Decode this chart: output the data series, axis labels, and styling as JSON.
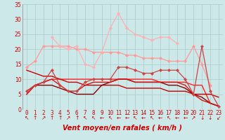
{
  "background_color": "#cce8e8",
  "grid_color": "#aacccc",
  "xlabel": "Vent moyen/en rafales ( km/h )",
  "xlabel_color": "#cc0000",
  "tick_color": "#cc0000",
  "series": [
    {
      "data": [
        14,
        16,
        21,
        21,
        21,
        21,
        20,
        20,
        19,
        19,
        19,
        19,
        18,
        18,
        17,
        17,
        17,
        16,
        16,
        16,
        21,
        15,
        8,
        null
      ],
      "color": "#ff9999",
      "lw": 0.9,
      "marker": "D",
      "ms": 2.2
    },
    {
      "data": [
        null,
        null,
        null,
        24,
        21,
        20,
        21,
        15,
        14,
        19,
        27,
        32,
        27,
        25,
        24,
        23,
        24,
        24,
        22,
        null,
        null,
        null,
        null,
        null
      ],
      "color": "#ffb0b0",
      "lw": 0.9,
      "marker": "D",
      "ms": 2.2
    },
    {
      "data": [
        6,
        8,
        9,
        13,
        8,
        6,
        6,
        9,
        10,
        10,
        10,
        14,
        14,
        13,
        12,
        12,
        13,
        13,
        13,
        10,
        5,
        21,
        6,
        1
      ],
      "color": "#cc4444",
      "lw": 0.9,
      "marker": "D",
      "ms": 2.2
    },
    {
      "data": [
        5,
        8,
        9,
        10,
        10,
        10,
        10,
        10,
        10,
        10,
        10,
        10,
        10,
        10,
        10,
        10,
        9,
        9,
        9,
        9,
        8,
        8,
        2,
        1
      ],
      "color": "#ff2222",
      "lw": 1.0,
      "marker": null,
      "ms": 0
    },
    {
      "data": [
        13,
        12,
        11,
        11,
        10,
        9,
        9,
        8,
        8,
        8,
        8,
        8,
        7,
        7,
        7,
        7,
        7,
        6,
        6,
        6,
        5,
        5,
        5,
        4
      ],
      "color": "#cc0000",
      "lw": 1.0,
      "marker": null,
      "ms": 0
    },
    {
      "data": [
        6,
        8,
        8,
        8,
        7,
        6,
        5,
        5,
        5,
        8,
        9,
        10,
        10,
        9,
        9,
        9,
        9,
        8,
        8,
        7,
        5,
        4,
        2,
        1
      ],
      "color": "#880000",
      "lw": 1.0,
      "marker": null,
      "ms": 0
    },
    {
      "data": [
        5,
        8,
        9,
        10,
        8,
        6,
        6,
        8,
        9,
        9,
        9,
        10,
        10,
        9,
        9,
        9,
        9,
        9,
        9,
        8,
        5,
        3,
        2,
        1
      ],
      "color": "#dd1111",
      "lw": 1.0,
      "marker": null,
      "ms": 0
    }
  ],
  "ylim": [
    0,
    35
  ],
  "yticks": [
    0,
    5,
    10,
    15,
    20,
    25,
    30,
    35
  ],
  "xlim": [
    -0.5,
    23.5
  ],
  "arrow_chars": [
    "↖",
    "↑",
    "↗",
    "↑",
    "↑",
    "↗",
    "↑",
    "↖",
    "↖",
    "←",
    "↖",
    "←",
    "←",
    "↖",
    "←",
    "↖",
    "←",
    "↖",
    "←",
    "←",
    "↗",
    "↓",
    "↓",
    "↙"
  ]
}
